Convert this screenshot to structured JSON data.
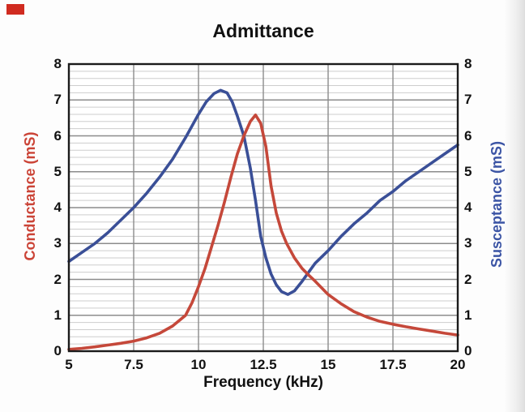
{
  "decoration": {
    "corner_marker_color": "#d02b20"
  },
  "chart_data": {
    "type": "line",
    "title": "Admittance",
    "xlabel": "Frequency (kHz)",
    "ylabel_left": "Conductance (mS)",
    "ylabel_right": "Susceptance (mS)",
    "xlim": [
      5,
      20
    ],
    "ylim": [
      0,
      8
    ],
    "x_ticks": [
      "5",
      "7.5",
      "10",
      "12.5",
      "15",
      "17.5",
      "20"
    ],
    "y_ticks_left": [
      "0",
      "1",
      "2",
      "3",
      "4",
      "5",
      "6",
      "7",
      "8"
    ],
    "y_ticks_right": [
      "0",
      "1",
      "2",
      "3",
      "4",
      "5",
      "6",
      "7",
      "8"
    ],
    "grid": {
      "major_color": "#8c8c8c",
      "minor_color": "#cdcdcd",
      "minor_step_y": 0.2,
      "border_color": "#1b1b1b",
      "plot_background": "#ffffff"
    },
    "legend": "none",
    "series": [
      {
        "name": "Susceptance",
        "axis": "right",
        "color": "#3a4f97",
        "points": [
          [
            5,
            2.5
          ],
          [
            5.5,
            2.75
          ],
          [
            6,
            3.0
          ],
          [
            6.5,
            3.3
          ],
          [
            7,
            3.65
          ],
          [
            7.5,
            4.0
          ],
          [
            8,
            4.4
          ],
          [
            8.5,
            4.85
          ],
          [
            9,
            5.35
          ],
          [
            9.5,
            5.95
          ],
          [
            10,
            6.6
          ],
          [
            10.3,
            6.95
          ],
          [
            10.6,
            7.18
          ],
          [
            10.85,
            7.27
          ],
          [
            11.1,
            7.2
          ],
          [
            11.3,
            6.95
          ],
          [
            11.5,
            6.55
          ],
          [
            11.75,
            6.0
          ],
          [
            12,
            5.1
          ],
          [
            12.2,
            4.2
          ],
          [
            12.4,
            3.2
          ],
          [
            12.6,
            2.6
          ],
          [
            12.8,
            2.15
          ],
          [
            13,
            1.85
          ],
          [
            13.2,
            1.66
          ],
          [
            13.45,
            1.58
          ],
          [
            13.7,
            1.68
          ],
          [
            14,
            1.95
          ],
          [
            14.25,
            2.2
          ],
          [
            14.5,
            2.45
          ],
          [
            15,
            2.8
          ],
          [
            15.5,
            3.2
          ],
          [
            16,
            3.55
          ],
          [
            16.5,
            3.85
          ],
          [
            17,
            4.2
          ],
          [
            17.5,
            4.45
          ],
          [
            18,
            4.75
          ],
          [
            18.5,
            5.0
          ],
          [
            19,
            5.25
          ],
          [
            19.5,
            5.5
          ],
          [
            20,
            5.75
          ]
        ]
      },
      {
        "name": "Conductance",
        "axis": "left",
        "color": "#c5483a",
        "points": [
          [
            5,
            0.05
          ],
          [
            5.5,
            0.08
          ],
          [
            6,
            0.12
          ],
          [
            6.5,
            0.17
          ],
          [
            7,
            0.22
          ],
          [
            7.5,
            0.28
          ],
          [
            8,
            0.37
          ],
          [
            8.5,
            0.5
          ],
          [
            9,
            0.7
          ],
          [
            9.5,
            1.0
          ],
          [
            9.75,
            1.35
          ],
          [
            10,
            1.8
          ],
          [
            10.25,
            2.3
          ],
          [
            10.5,
            2.9
          ],
          [
            10.75,
            3.5
          ],
          [
            11,
            4.15
          ],
          [
            11.25,
            4.85
          ],
          [
            11.5,
            5.5
          ],
          [
            11.75,
            6.0
          ],
          [
            12,
            6.4
          ],
          [
            12.2,
            6.58
          ],
          [
            12.4,
            6.35
          ],
          [
            12.6,
            5.7
          ],
          [
            12.8,
            4.6
          ],
          [
            13,
            3.85
          ],
          [
            13.2,
            3.35
          ],
          [
            13.4,
            3.0
          ],
          [
            13.7,
            2.6
          ],
          [
            14,
            2.3
          ],
          [
            14.25,
            2.12
          ],
          [
            14.5,
            1.95
          ],
          [
            15,
            1.58
          ],
          [
            15.5,
            1.32
          ],
          [
            16,
            1.1
          ],
          [
            16.5,
            0.95
          ],
          [
            17,
            0.83
          ],
          [
            17.5,
            0.75
          ],
          [
            18,
            0.68
          ],
          [
            18.5,
            0.62
          ],
          [
            19,
            0.56
          ],
          [
            19.5,
            0.5
          ],
          [
            20,
            0.45
          ]
        ]
      }
    ]
  }
}
